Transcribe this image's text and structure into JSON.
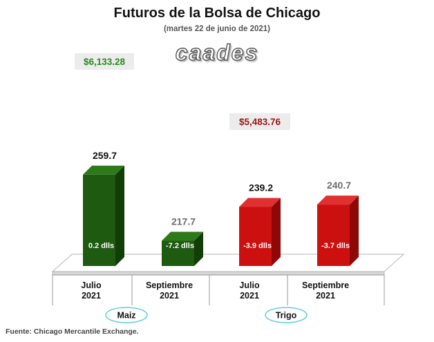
{
  "header": {
    "title": "Futuros de la Bolsa de Chicago",
    "subtitle": "(martes 22 de junio de 2021)",
    "logo_text": "caades"
  },
  "footer": {
    "source": "Fuente: Chicago Mercantile Exchange."
  },
  "colors": {
    "maiz_front": "#1e5a10",
    "maiz_side": "#123c08",
    "maiz_top": "#2d7a1a",
    "trigo_front": "#cc1010",
    "trigo_side": "#8e0808",
    "trigo_top": "#e03030",
    "maiz_price": "#2a8a1e",
    "trigo_price": "#a01818",
    "price_box": "#ececec",
    "group_oval": "#5ad0d8"
  },
  "chart_data": {
    "type": "bar",
    "title": "Futuros de la Bolsa de Chicago",
    "subtitle": "(martes 22 de junio de 2021)",
    "ylim": [
      0,
      280
    ],
    "grid": false,
    "groups": [
      {
        "name": "Maiz",
        "price": "$6,133.28"
      },
      {
        "name": "Trigo",
        "price": "$5,483.76"
      }
    ],
    "categories": [
      [
        "Julio",
        "2021"
      ],
      [
        "Septiembre",
        "2021"
      ],
      [
        "Julio",
        "2021"
      ],
      [
        "Septiembre",
        "2021"
      ]
    ],
    "values": [
      259.7,
      217.7,
      239.2,
      240.7
    ],
    "value_labels": [
      "259.7",
      "217.7",
      "239.2",
      "240.7"
    ],
    "change_labels": [
      "0.2 dlls",
      "-7.2 dlls",
      "-3.9 dlls",
      "-3.7 dlls"
    ],
    "bar_group": [
      "Maiz",
      "Maiz",
      "Trigo",
      "Trigo"
    ]
  }
}
